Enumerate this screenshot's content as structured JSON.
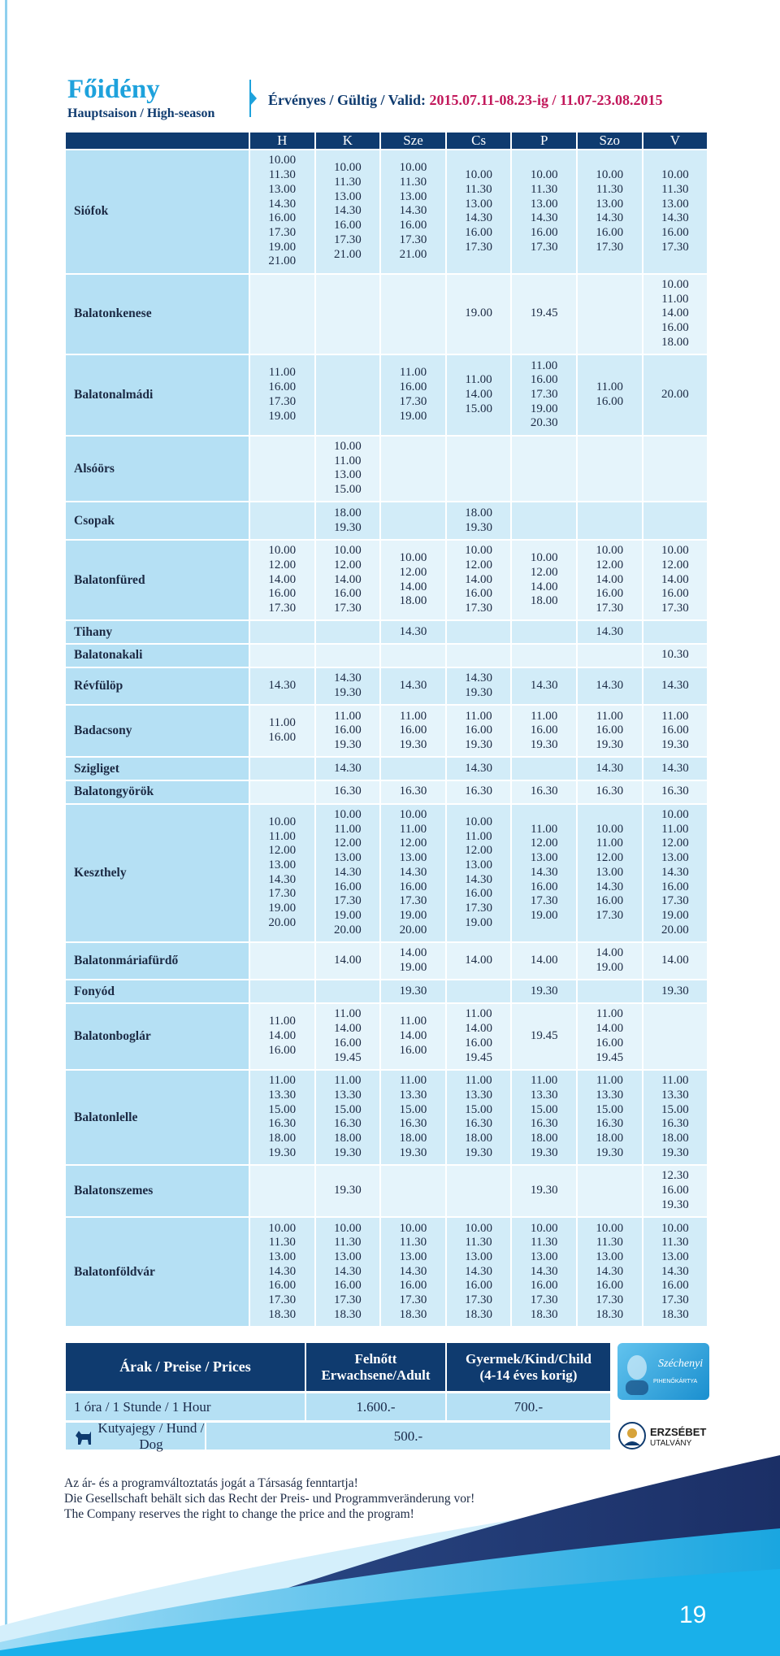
{
  "header": {
    "title": "Főidény",
    "subtitle": "Hauptsaison / High-season",
    "valid_label": "Érvényes / Gültig / Valid:",
    "valid_dates": "2015.07.11-08.23-ig / 11.07-23.08.2015"
  },
  "schedule": {
    "days": [
      "H",
      "K",
      "Sze",
      "Cs",
      "P",
      "Szo",
      "V"
    ],
    "rows": [
      {
        "stop": "Siófok",
        "times": [
          [
            "10.00",
            "11.30",
            "13.00",
            "14.30",
            "16.00",
            "17.30",
            "19.00",
            "21.00"
          ],
          [
            "10.00",
            "11.30",
            "13.00",
            "14.30",
            "16.00",
            "17.30",
            "21.00"
          ],
          [
            "10.00",
            "11.30",
            "13.00",
            "14.30",
            "16.00",
            "17.30",
            "21.00"
          ],
          [
            "10.00",
            "11.30",
            "13.00",
            "14.30",
            "16.00",
            "17.30"
          ],
          [
            "10.00",
            "11.30",
            "13.00",
            "14.30",
            "16.00",
            "17.30"
          ],
          [
            "10.00",
            "11.30",
            "13.00",
            "14.30",
            "16.00",
            "17.30"
          ],
          [
            "10.00",
            "11.30",
            "13.00",
            "14.30",
            "16.00",
            "17.30"
          ]
        ]
      },
      {
        "stop": "Balatonkenese",
        "times": [
          [],
          [],
          [],
          [
            "19.00"
          ],
          [
            "19.45"
          ],
          [],
          [
            "10.00",
            "11.00",
            "14.00",
            "16.00",
            "18.00"
          ]
        ]
      },
      {
        "stop": "Balatonalmádi",
        "times": [
          [
            "11.00",
            "16.00",
            "17.30",
            "19.00"
          ],
          [],
          [
            "11.00",
            "16.00",
            "17.30",
            "19.00"
          ],
          [
            "11.00",
            "14.00",
            "15.00"
          ],
          [
            "11.00",
            "16.00",
            "17.30",
            "19.00",
            "20.30"
          ],
          [
            "11.00",
            "16.00"
          ],
          [
            "20.00"
          ]
        ]
      },
      {
        "stop": "Alsóörs",
        "times": [
          [],
          [
            "10.00",
            "11.00",
            "13.00",
            "15.00"
          ],
          [],
          [],
          [],
          [],
          []
        ]
      },
      {
        "stop": "Csopak",
        "times": [
          [],
          [
            "18.00",
            "19.30"
          ],
          [],
          [
            "18.00",
            "19.30"
          ],
          [],
          [],
          []
        ]
      },
      {
        "stop": "Balatonfüred",
        "times": [
          [
            "10.00",
            "12.00",
            "14.00",
            "16.00",
            "17.30"
          ],
          [
            "10.00",
            "12.00",
            "14.00",
            "16.00",
            "17.30"
          ],
          [
            "10.00",
            "12.00",
            "14.00",
            "18.00"
          ],
          [
            "10.00",
            "12.00",
            "14.00",
            "16.00",
            "17.30"
          ],
          [
            "10.00",
            "12.00",
            "14.00",
            "18.00"
          ],
          [
            "10.00",
            "12.00",
            "14.00",
            "16.00",
            "17.30"
          ],
          [
            "10.00",
            "12.00",
            "14.00",
            "16.00",
            "17.30"
          ]
        ]
      },
      {
        "stop": "Tihany",
        "times": [
          [],
          [],
          [
            "14.30"
          ],
          [],
          [],
          [
            "14.30"
          ],
          []
        ]
      },
      {
        "stop": "Balatonakali",
        "times": [
          [],
          [],
          [],
          [],
          [],
          [],
          [
            "10.30"
          ]
        ]
      },
      {
        "stop": "Révfülöp",
        "times": [
          [
            "14.30"
          ],
          [
            "14.30",
            "19.30"
          ],
          [
            "14.30"
          ],
          [
            "14.30",
            "19.30"
          ],
          [
            "14.30"
          ],
          [
            "14.30"
          ],
          [
            "14.30"
          ]
        ]
      },
      {
        "stop": "Badacsony",
        "times": [
          [
            "11.00",
            "16.00"
          ],
          [
            "11.00",
            "16.00",
            "19.30"
          ],
          [
            "11.00",
            "16.00",
            "19.30"
          ],
          [
            "11.00",
            "16.00",
            "19.30"
          ],
          [
            "11.00",
            "16.00",
            "19.30"
          ],
          [
            "11.00",
            "16.00",
            "19.30"
          ],
          [
            "11.00",
            "16.00",
            "19.30"
          ]
        ]
      },
      {
        "stop": "Szigliget",
        "times": [
          [],
          [
            "14.30"
          ],
          [],
          [
            "14.30"
          ],
          [],
          [
            "14.30"
          ],
          [
            "14.30"
          ]
        ]
      },
      {
        "stop": "Balatongyörök",
        "times": [
          [],
          [
            "16.30"
          ],
          [
            "16.30"
          ],
          [
            "16.30"
          ],
          [
            "16.30"
          ],
          [
            "16.30"
          ],
          [
            "16.30"
          ]
        ]
      },
      {
        "stop": "Keszthely",
        "times": [
          [
            "10.00",
            "11.00",
            "12.00",
            "13.00",
            "14.30",
            "17.30",
            "19.00",
            "20.00"
          ],
          [
            "10.00",
            "11.00",
            "12.00",
            "13.00",
            "14.30",
            "16.00",
            "17.30",
            "19.00",
            "20.00"
          ],
          [
            "10.00",
            "11.00",
            "12.00",
            "13.00",
            "14.30",
            "16.00",
            "17.30",
            "19.00",
            "20.00"
          ],
          [
            "10.00",
            "11.00",
            "12.00",
            "13.00",
            "14.30",
            "16.00",
            "17.30",
            "19.00"
          ],
          [
            "11.00",
            "12.00",
            "13.00",
            "14.30",
            "16.00",
            "17.30",
            "19.00"
          ],
          [
            "10.00",
            "11.00",
            "12.00",
            "13.00",
            "14.30",
            "16.00",
            "17.30"
          ],
          [
            "10.00",
            "11.00",
            "12.00",
            "13.00",
            "14.30",
            "16.00",
            "17.30",
            "19.00",
            "20.00"
          ]
        ]
      },
      {
        "stop": "Balatonmáriafürdő",
        "times": [
          [],
          [
            "14.00"
          ],
          [
            "14.00",
            "19.00"
          ],
          [
            "14.00"
          ],
          [
            "14.00"
          ],
          [
            "14.00",
            "19.00"
          ],
          [
            "14.00"
          ]
        ]
      },
      {
        "stop": "Fonyód",
        "times": [
          [],
          [],
          [
            "19.30"
          ],
          [],
          [
            "19.30"
          ],
          [],
          [
            "19.30"
          ]
        ]
      },
      {
        "stop": "Balatonboglár",
        "times": [
          [
            "11.00",
            "14.00",
            "16.00"
          ],
          [
            "11.00",
            "14.00",
            "16.00",
            "19.45"
          ],
          [
            "11.00",
            "14.00",
            "16.00"
          ],
          [
            "11.00",
            "14.00",
            "16.00",
            "19.45"
          ],
          [
            "19.45"
          ],
          [
            "11.00",
            "14.00",
            "16.00",
            "19.45"
          ],
          []
        ]
      },
      {
        "stop": "Balatonlelle",
        "times": [
          [
            "11.00",
            "13.30",
            "15.00",
            "16.30",
            "18.00",
            "19.30"
          ],
          [
            "11.00",
            "13.30",
            "15.00",
            "16.30",
            "18.00",
            "19.30"
          ],
          [
            "11.00",
            "13.30",
            "15.00",
            "16.30",
            "18.00",
            "19.30"
          ],
          [
            "11.00",
            "13.30",
            "15.00",
            "16.30",
            "18.00",
            "19.30"
          ],
          [
            "11.00",
            "13.30",
            "15.00",
            "16.30",
            "18.00",
            "19.30"
          ],
          [
            "11.00",
            "13.30",
            "15.00",
            "16.30",
            "18.00",
            "19.30"
          ],
          [
            "11.00",
            "13.30",
            "15.00",
            "16.30",
            "18.00",
            "19.30"
          ]
        ]
      },
      {
        "stop": "Balatonszemes",
        "times": [
          [],
          [
            "19.30"
          ],
          [],
          [],
          [
            "19.30"
          ],
          [],
          [
            "12.30",
            "16.00",
            "19.30"
          ]
        ]
      },
      {
        "stop": "Balatonföldvár",
        "times": [
          [
            "10.00",
            "11.30",
            "13.00",
            "14.30",
            "16.00",
            "17.30",
            "18.30"
          ],
          [
            "10.00",
            "11.30",
            "13.00",
            "14.30",
            "16.00",
            "17.30",
            "18.30"
          ],
          [
            "10.00",
            "11.30",
            "13.00",
            "14.30",
            "16.00",
            "17.30",
            "18.30"
          ],
          [
            "10.00",
            "11.30",
            "13.00",
            "14.30",
            "16.00",
            "17.30",
            "18.30"
          ],
          [
            "10.00",
            "11.30",
            "13.00",
            "14.30",
            "16.00",
            "17.30",
            "18.30"
          ],
          [
            "10.00",
            "11.30",
            "13.00",
            "14.30",
            "16.00",
            "17.30",
            "18.30"
          ],
          [
            "10.00",
            "11.30",
            "13.00",
            "14.30",
            "16.00",
            "17.30",
            "18.30"
          ]
        ]
      }
    ]
  },
  "prices": {
    "title": "Árak / Preise / Prices",
    "adult": [
      "Felnőtt",
      "Erwachsene/Adult"
    ],
    "child": [
      "Gyermek/Kind/Child",
      "(4-14 éves korig)"
    ],
    "hour": {
      "label": "1 óra / 1 Stunde / 1 Hour",
      "adult": "1.600.-",
      "child": "700.-"
    },
    "dog": {
      "label": "Kutyajegy / Hund / Dog",
      "price": "500.-"
    }
  },
  "logos": {
    "card_name": "Széchenyi",
    "card_type": "PIHENŐKÁRTYA",
    "voucher": "ERZSÉBET",
    "voucher_sub": "UTALVÁNY"
  },
  "notes": [
    "Az ár- és a programváltoztatás jogát a Társaság fenntartja!",
    "Die Gesellschaft behält sich das Recht der Preis- und Programmveränderung vor!",
    "The Company reserves the right to change the price and the program!"
  ],
  "page_number": "19"
}
